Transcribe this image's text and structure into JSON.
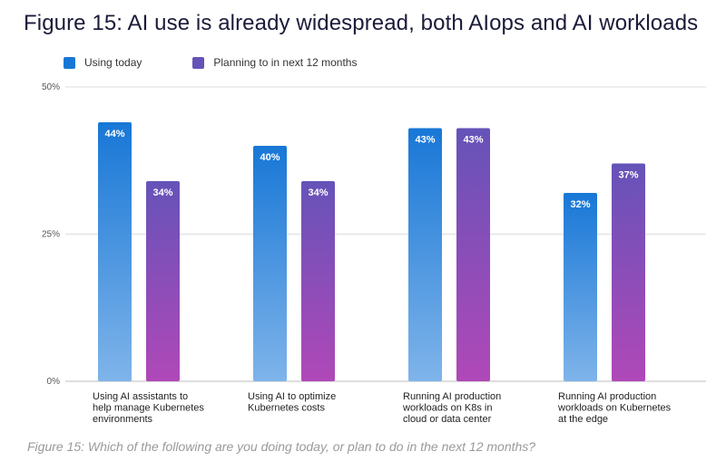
{
  "title": "Figure 15: AI use is already widespread, both AIops and AI workloads",
  "caption": "Figure 15: Which of the following are you doing today, or plan to do in the next 12 months?",
  "colors": {
    "series1_top": "#1877d6",
    "series1_bottom": "#7fb4ea",
    "series2_top": "#6553b8",
    "series2_bottom": "#b048b8",
    "grid": "#dddddd"
  },
  "chart_data": {
    "type": "bar",
    "title": "Figure 15: AI use is already widespread, both AIops and AI workloads",
    "categories": [
      [
        "Using AI assistants to",
        "help manage Kubernetes",
        "environments"
      ],
      [
        "Using AI to optimize",
        "Kubernetes costs"
      ],
      [
        "Running AI production",
        "workloads on K8s in",
        "cloud or data center"
      ],
      [
        "Running AI production",
        "workloads on Kubernetes",
        "at the edge"
      ]
    ],
    "series": [
      {
        "name": "Using today",
        "values": [
          44,
          40,
          43,
          32
        ]
      },
      {
        "name": "Planning to in next 12 months",
        "values": [
          34,
          34,
          43,
          37
        ]
      }
    ],
    "value_suffix": "%",
    "yticks": [
      "0%",
      "25%",
      "50%"
    ],
    "ytick_values": [
      0,
      25,
      50
    ],
    "ylim": [
      0,
      50
    ],
    "grid": true,
    "legend_position": "top-left"
  }
}
